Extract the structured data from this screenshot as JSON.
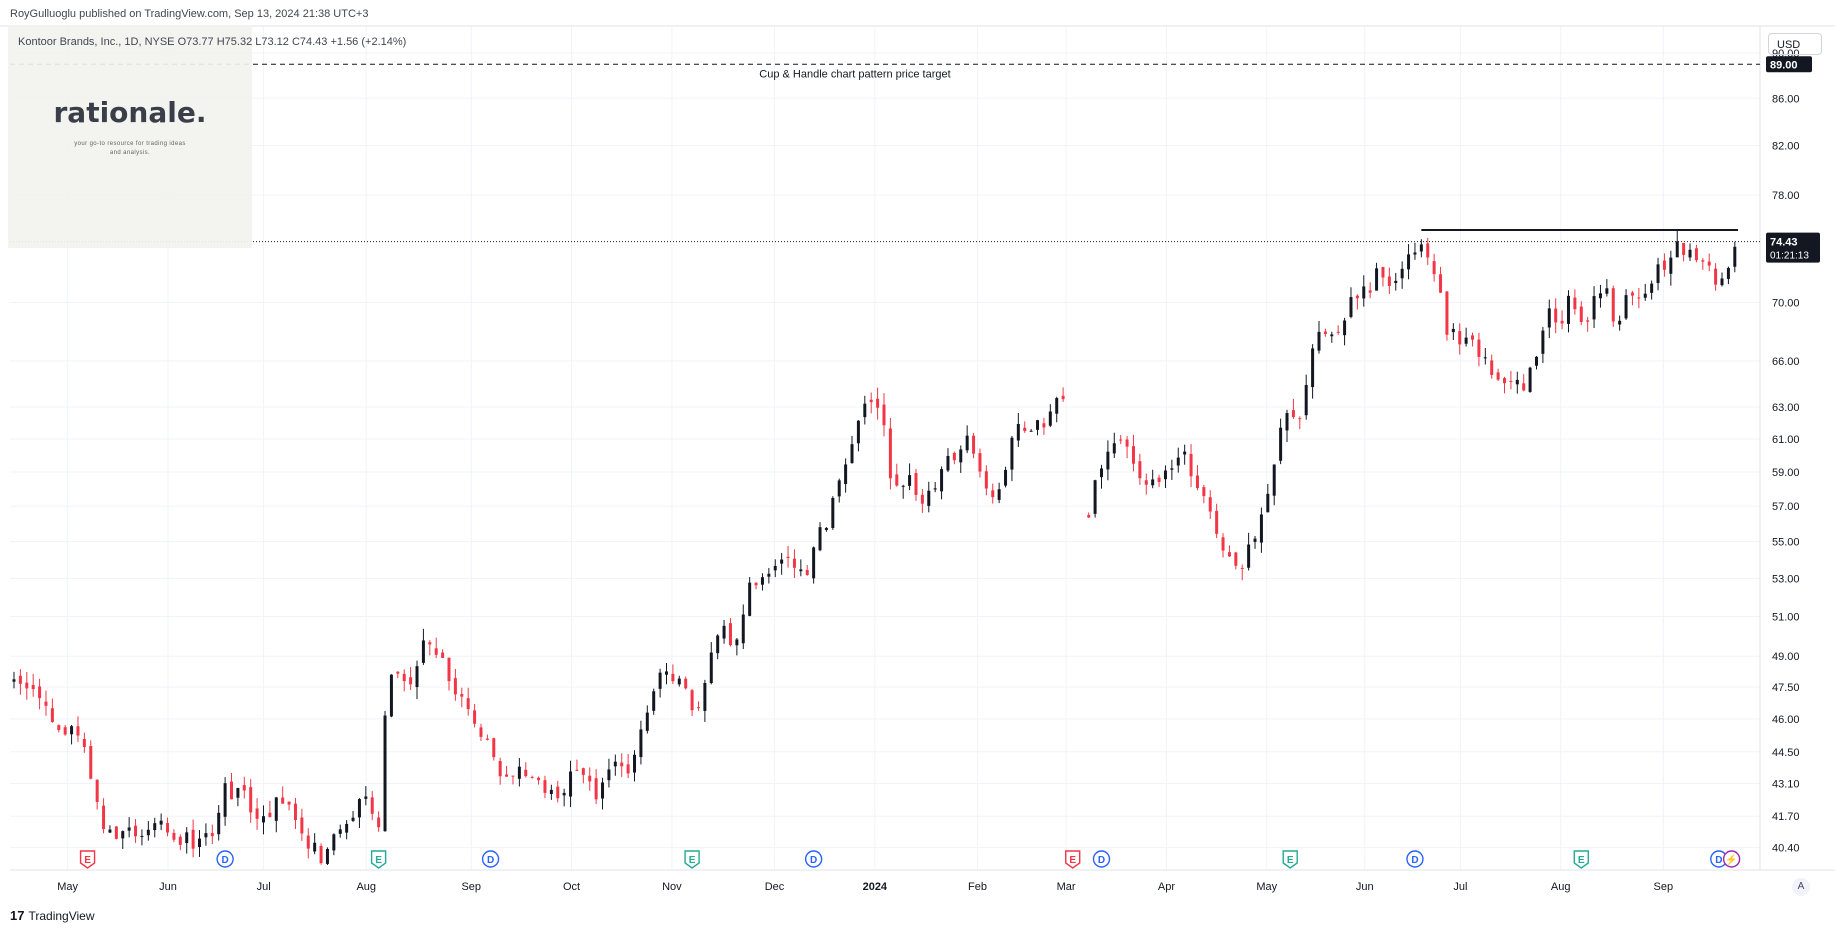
{
  "header": {
    "publisher": "RoyGulluoglu published on TradingView.com, Sep 13, 2024 21:38 UTC+3",
    "symbol_line": "Kontoor Brands, Inc., 1D, NYSE  O73.77  H75.32  L73.12  C74.43  +1.56 (+2.14%)"
  },
  "overlay_logo": {
    "word": "rationale.",
    "tagline": "your go-to resource for trading ideas and analysis."
  },
  "toolbar": {
    "currency": "USD",
    "auto_label": "A"
  },
  "footer": {
    "brand": "TradingView",
    "brand_mark": "17"
  },
  "colors": {
    "up": "#131722",
    "down": "#f23645",
    "grid": "#f0f3fa",
    "earnings": "#f23645",
    "earnings_alt": "#22ab94",
    "dividend": "#2962ff",
    "split": "#9c27b0"
  },
  "chart_data": {
    "type": "candlestick",
    "symbol": "Kontoor Brands, Inc.",
    "interval": "1D",
    "exchange": "NYSE",
    "currency": "USD",
    "y_ticks": [
      "40.40",
      "41.70",
      "43.10",
      "44.50",
      "46.00",
      "47.50",
      "49.00",
      "51.00",
      "53.00",
      "55.00",
      "57.00",
      "59.00",
      "61.00",
      "63.00",
      "66.00",
      "70.00",
      "74.43",
      "78.00",
      "82.00",
      "86.00",
      "89.00",
      "90.00"
    ],
    "ylim": [
      39.5,
      92.5
    ],
    "y_scale": "log",
    "x_ticks": [
      "May",
      "Jun",
      "Jul",
      "Aug",
      "Sep",
      "Oct",
      "Nov",
      "Dec",
      "2024",
      "Feb",
      "Mar",
      "Apr",
      "May",
      "Jun",
      "Jul",
      "Aug",
      "Sep"
    ],
    "current_price": "74.43",
    "countdown": "01:21:13",
    "price_target": 89.0,
    "price_target_label": "89.00",
    "target_annotation": "Cup & Handle chart pattern price target",
    "resistance_level": 75.3,
    "anchors": [
      {
        "d": 0,
        "p": 47.6
      },
      {
        "d": 6,
        "p": 47.0
      },
      {
        "d": 14,
        "p": 45.8
      },
      {
        "d": 22,
        "p": 44.8
      },
      {
        "d": 27,
        "p": 41.6
      },
      {
        "d": 35,
        "p": 40.8
      },
      {
        "d": 45,
        "p": 41.5
      },
      {
        "d": 55,
        "p": 40.6
      },
      {
        "d": 63,
        "p": 41.2
      },
      {
        "d": 66,
        "p": 42.8
      },
      {
        "d": 72,
        "p": 42.5
      },
      {
        "d": 78,
        "p": 41.4
      },
      {
        "d": 84,
        "p": 42.6
      },
      {
        "d": 90,
        "p": 40.8
      },
      {
        "d": 96,
        "p": 40.0
      },
      {
        "d": 104,
        "p": 41.3
      },
      {
        "d": 110,
        "p": 42.7
      },
      {
        "d": 114,
        "p": 41.5
      },
      {
        "d": 117,
        "p": 48.5
      },
      {
        "d": 123,
        "p": 47.3
      },
      {
        "d": 128,
        "p": 49.5
      },
      {
        "d": 133,
        "p": 49.0
      },
      {
        "d": 137,
        "p": 47.6
      },
      {
        "d": 142,
        "p": 46.6
      },
      {
        "d": 149,
        "p": 44.8
      },
      {
        "d": 153,
        "p": 43.1
      },
      {
        "d": 158,
        "p": 43.9
      },
      {
        "d": 163,
        "p": 43.5
      },
      {
        "d": 170,
        "p": 42.3
      },
      {
        "d": 176,
        "p": 44.0
      },
      {
        "d": 182,
        "p": 42.8
      },
      {
        "d": 188,
        "p": 44.2
      },
      {
        "d": 193,
        "p": 43.3
      },
      {
        "d": 197,
        "p": 46.2
      },
      {
        "d": 202,
        "p": 48.0
      },
      {
        "d": 207,
        "p": 47.7
      },
      {
        "d": 211,
        "p": 47.0
      },
      {
        "d": 214,
        "p": 46.3
      },
      {
        "d": 217,
        "p": 48.8
      },
      {
        "d": 222,
        "p": 50.4
      },
      {
        "d": 226,
        "p": 49.5
      },
      {
        "d": 229,
        "p": 52.4
      },
      {
        "d": 235,
        "p": 53.2
      },
      {
        "d": 242,
        "p": 54.0
      },
      {
        "d": 248,
        "p": 53.6
      },
      {
        "d": 254,
        "p": 56.2
      },
      {
        "d": 258,
        "p": 58.6
      },
      {
        "d": 263,
        "p": 61.5
      },
      {
        "d": 267,
        "p": 63.6
      },
      {
        "d": 271,
        "p": 62.5
      },
      {
        "d": 275,
        "p": 58.0
      },
      {
        "d": 280,
        "p": 58.6
      },
      {
        "d": 285,
        "p": 57.3
      },
      {
        "d": 292,
        "p": 59.7
      },
      {
        "d": 298,
        "p": 60.8
      },
      {
        "d": 303,
        "p": 58.5
      },
      {
        "d": 307,
        "p": 57.7
      },
      {
        "d": 313,
        "p": 61.5
      },
      {
        "d": 318,
        "p": 61.0
      },
      {
        "d": 325,
        "p": 63.2
      },
      {
        "d": 329,
        "p": 63.5
      },
      {
        "d": 335,
        "p": 55.2
      },
      {
        "d": 338,
        "p": 58.3
      },
      {
        "d": 343,
        "p": 61.3
      },
      {
        "d": 348,
        "p": 60.7
      },
      {
        "d": 352,
        "p": 58.8
      },
      {
        "d": 357,
        "p": 58.3
      },
      {
        "d": 362,
        "p": 59.0
      },
      {
        "d": 366,
        "p": 59.7
      },
      {
        "d": 370,
        "p": 57.6
      },
      {
        "d": 374,
        "p": 56.6
      },
      {
        "d": 379,
        "p": 54.2
      },
      {
        "d": 383,
        "p": 53.5
      },
      {
        "d": 387,
        "p": 55.1
      },
      {
        "d": 391,
        "p": 57.3
      },
      {
        "d": 395,
        "p": 60.6
      },
      {
        "d": 399,
        "p": 62.8
      },
      {
        "d": 402,
        "p": 62.0
      },
      {
        "d": 405,
        "p": 66.3
      },
      {
        "d": 409,
        "p": 68.0
      },
      {
        "d": 414,
        "p": 68.4
      },
      {
        "d": 418,
        "p": 69.8
      },
      {
        "d": 423,
        "p": 71.0
      },
      {
        "d": 427,
        "p": 72.3
      },
      {
        "d": 431,
        "p": 71.0
      },
      {
        "d": 436,
        "p": 73.4
      },
      {
        "d": 440,
        "p": 74.3
      },
      {
        "d": 444,
        "p": 72.0
      },
      {
        "d": 448,
        "p": 68.3
      },
      {
        "d": 452,
        "p": 67.7
      },
      {
        "d": 456,
        "p": 67.0
      },
      {
        "d": 460,
        "p": 66.1
      },
      {
        "d": 464,
        "p": 64.6
      },
      {
        "d": 468,
        "p": 65.0
      },
      {
        "d": 472,
        "p": 64.0
      },
      {
        "d": 476,
        "p": 66.2
      },
      {
        "d": 480,
        "p": 69.2
      },
      {
        "d": 484,
        "p": 69.0
      },
      {
        "d": 487,
        "p": 70.6
      },
      {
        "d": 491,
        "p": 68.0
      },
      {
        "d": 495,
        "p": 71.0
      },
      {
        "d": 498,
        "p": 70.5
      },
      {
        "d": 501,
        "p": 68.3
      },
      {
        "d": 505,
        "p": 71.0
      },
      {
        "d": 509,
        "p": 70.8
      },
      {
        "d": 513,
        "p": 71.7
      },
      {
        "d": 517,
        "p": 73.3
      },
      {
        "d": 521,
        "p": 74.0
      },
      {
        "d": 525,
        "p": 73.5
      },
      {
        "d": 529,
        "p": 72.4
      },
      {
        "d": 533,
        "p": 71.0
      },
      {
        "d": 537,
        "p": 72.9
      },
      {
        "d": 539,
        "p": 74.43
      }
    ],
    "events": [
      {
        "type": "E",
        "d": 23,
        "color": "earnings"
      },
      {
        "type": "D",
        "d": 66,
        "color": "dividend"
      },
      {
        "type": "E",
        "d": 114,
        "color": "earnings_alt"
      },
      {
        "type": "D",
        "d": 149,
        "color": "dividend"
      },
      {
        "type": "E",
        "d": 212,
        "color": "earnings_alt"
      },
      {
        "type": "D",
        "d": 250,
        "color": "dividend"
      },
      {
        "type": "E",
        "d": 331,
        "color": "earnings"
      },
      {
        "type": "D",
        "d": 340,
        "color": "dividend"
      },
      {
        "type": "E",
        "d": 399,
        "color": "earnings_alt"
      },
      {
        "type": "D",
        "d": 438,
        "color": "dividend"
      },
      {
        "type": "E",
        "d": 490,
        "color": "earnings_alt"
      },
      {
        "type": "D",
        "d": 533,
        "color": "dividend"
      },
      {
        "type": "S",
        "d": 537,
        "color": "split"
      }
    ]
  }
}
